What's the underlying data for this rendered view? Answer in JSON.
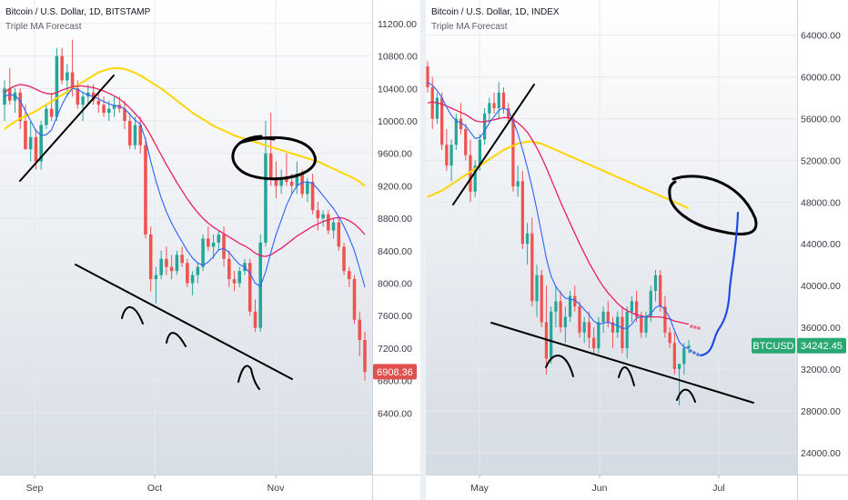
{
  "colors": {
    "up": "#26a69a",
    "down": "#ef5350",
    "ma_fast": "#2962ff",
    "ma_mid": "#e91e63",
    "ma_slow": "#ffd600",
    "ink": "#000000",
    "forecast": "#1e4ce6",
    "badge_red": "#e0504f",
    "badge_green": "#2aa872"
  },
  "chart_data": [
    {
      "type": "candlestick",
      "title": "Bitcoin / U.S. Dollar, 1D, BITSTAMP",
      "subtitle": "Triple MA Forecast",
      "x_labels": [
        "Sep",
        "Oct",
        "Nov"
      ],
      "y_ticks": [
        "11200.00",
        "10800.00",
        "10400.00",
        "10000.00",
        "9600.00",
        "9200.00",
        "8800.00",
        "8400.00",
        "8000.00",
        "7600.00",
        "7200.00",
        "6800.00",
        "6400.00"
      ],
      "ylim": [
        6000,
        11300
      ],
      "last_price": "6908.36",
      "candles": [
        [
          10200,
          10500,
          10000,
          10400
        ],
        [
          10400,
          10650,
          10200,
          10250
        ],
        [
          10250,
          10400,
          10100,
          10350
        ],
        [
          10350,
          10400,
          9900,
          10000
        ],
        [
          10000,
          10200,
          9700,
          9650
        ],
        [
          9650,
          10000,
          9500,
          9800
        ],
        [
          9800,
          9900,
          9400,
          9500
        ],
        [
          9500,
          10000,
          9400,
          9950
        ],
        [
          9950,
          10200,
          9900,
          10150
        ],
        [
          10150,
          10350,
          10000,
          10050
        ],
        [
          10050,
          10900,
          10000,
          10800
        ],
        [
          10800,
          10900,
          10450,
          10500
        ],
        [
          10500,
          10700,
          10300,
          10600
        ],
        [
          10600,
          11000,
          10300,
          10400
        ],
        [
          10400,
          10500,
          10150,
          10200
        ],
        [
          10200,
          10350,
          10000,
          10300
        ],
        [
          10300,
          10450,
          10200,
          10350
        ],
        [
          10350,
          10450,
          10200,
          10250
        ],
        [
          10250,
          10350,
          10100,
          10200
        ],
        [
          10200,
          10300,
          10050,
          10100
        ],
        [
          10100,
          10250,
          10000,
          10150
        ],
        [
          10150,
          10300,
          10050,
          10200
        ],
        [
          10200,
          10300,
          10100,
          10150
        ],
        [
          10150,
          10250,
          9900,
          10000
        ],
        [
          10000,
          10100,
          9650,
          9700
        ],
        [
          9700,
          10050,
          9650,
          9950
        ],
        [
          9950,
          10050,
          9600,
          9700
        ],
        [
          9700,
          9800,
          8550,
          8600
        ],
        [
          8600,
          8700,
          7900,
          8050
        ],
        [
          8050,
          8200,
          7750,
          8100
        ],
        [
          8100,
          8400,
          8050,
          8300
        ],
        [
          8300,
          8450,
          8100,
          8200
        ],
        [
          8200,
          8350,
          8050,
          8150
        ],
        [
          8150,
          8400,
          8100,
          8350
        ],
        [
          8350,
          8450,
          8200,
          8250
        ],
        [
          8250,
          8300,
          7950,
          8000
        ],
        [
          8000,
          8150,
          7850,
          8100
        ],
        [
          8100,
          8250,
          8000,
          8200
        ],
        [
          8200,
          8600,
          8150,
          8550
        ],
        [
          8550,
          8700,
          8400,
          8450
        ],
        [
          8450,
          8600,
          8300,
          8500
        ],
        [
          8500,
          8650,
          8400,
          8600
        ],
        [
          8600,
          8700,
          8200,
          8300
        ],
        [
          8300,
          8400,
          7950,
          8050
        ],
        [
          8050,
          8150,
          7900,
          8000
        ],
        [
          8000,
          8200,
          7950,
          8150
        ],
        [
          8150,
          8300,
          8100,
          8250
        ],
        [
          8250,
          8300,
          7600,
          7650
        ],
        [
          7650,
          7800,
          7400,
          7450
        ],
        [
          7450,
          8600,
          7400,
          8500
        ],
        [
          8500,
          10000,
          8450,
          9600
        ],
        [
          9600,
          10100,
          9200,
          9300
        ],
        [
          9300,
          9500,
          9050,
          9200
        ],
        [
          9200,
          9400,
          9100,
          9300
        ],
        [
          9300,
          9600,
          9200,
          9250
        ],
        [
          9250,
          9350,
          9100,
          9200
        ],
        [
          9200,
          9500,
          9100,
          9350
        ],
        [
          9350,
          9400,
          9050,
          9100
        ],
        [
          9100,
          9300,
          9000,
          9250
        ],
        [
          9250,
          9350,
          8850,
          8900
        ],
        [
          8900,
          9000,
          8650,
          8800
        ],
        [
          8800,
          8900,
          8700,
          8850
        ],
        [
          8850,
          8900,
          8600,
          8650
        ],
        [
          8650,
          8800,
          8550,
          8750
        ],
        [
          8750,
          8800,
          8400,
          8450
        ],
        [
          8450,
          8500,
          8100,
          8150
        ],
        [
          8150,
          8200,
          7950,
          8050
        ],
        [
          8050,
          8100,
          7500,
          7550
        ],
        [
          7550,
          7650,
          7100,
          7300
        ],
        [
          7300,
          7400,
          6800,
          6908
        ]
      ],
      "ma_fast": [
        10300,
        10330,
        10310,
        10250,
        10120,
        10000,
        9880,
        9820,
        9830,
        9890,
        10050,
        10200,
        10320,
        10400,
        10390,
        10350,
        10320,
        10300,
        10270,
        10240,
        10210,
        10190,
        10180,
        10150,
        10080,
        10010,
        9960,
        9770,
        9500,
        9260,
        9050,
        8880,
        8740,
        8620,
        8510,
        8400,
        8310,
        8250,
        8220,
        8260,
        8330,
        8410,
        8430,
        8380,
        8300,
        8230,
        8200,
        8120,
        8000,
        7960,
        8140,
        8380,
        8600,
        8780,
        8960,
        9100,
        9200,
        9240,
        9250,
        9230,
        9160,
        9080,
        9000,
        8920,
        8820,
        8700,
        8560,
        8400,
        8180,
        7950
      ],
      "ma_mid": [
        10350,
        10400,
        10430,
        10450,
        10440,
        10420,
        10390,
        10360,
        10340,
        10330,
        10350,
        10380,
        10400,
        10420,
        10430,
        10430,
        10420,
        10410,
        10390,
        10370,
        10340,
        10310,
        10270,
        10220,
        10160,
        10090,
        10020,
        9930,
        9820,
        9700,
        9580,
        9460,
        9350,
        9240,
        9140,
        9040,
        8950,
        8870,
        8800,
        8740,
        8690,
        8650,
        8610,
        8570,
        8530,
        8490,
        8460,
        8420,
        8370,
        8340,
        8330,
        8350,
        8390,
        8430,
        8480,
        8530,
        8580,
        8620,
        8660,
        8700,
        8730,
        8760,
        8780,
        8800,
        8810,
        8800,
        8770,
        8730,
        8670,
        8600
      ],
      "ma_slow": [
        9900,
        9950,
        9990,
        10030,
        10060,
        10090,
        10120,
        10160,
        10200,
        10240,
        10280,
        10320,
        10360,
        10400,
        10440,
        10480,
        10520,
        10560,
        10600,
        10620,
        10640,
        10650,
        10650,
        10640,
        10620,
        10590,
        10560,
        10520,
        10480,
        10440,
        10400,
        10350,
        10300,
        10250,
        10200,
        10150,
        10100,
        10060,
        10020,
        9980,
        9940,
        9910,
        9880,
        9850,
        9820,
        9800,
        9780,
        9760,
        9740,
        9720,
        9700,
        9680,
        9660,
        9640,
        9620,
        9600,
        9580,
        9560,
        9540,
        9520,
        9500,
        9470,
        9440,
        9410,
        9380,
        9350,
        9320,
        9290,
        9250,
        9200
      ]
    },
    {
      "type": "candlestick",
      "title": "Bitcoin / U.S. Dollar, 1D, INDEX",
      "subtitle": "Triple MA Forecast",
      "x_labels": [
        "May",
        "Jun",
        "Jul"
      ],
      "y_ticks": [
        "64000.00",
        "60000.00",
        "56000.00",
        "52000.00",
        "48000.00",
        "44000.00",
        "40000.00",
        "36000.00",
        "32000.00",
        "28000.00",
        "24000.00"
      ],
      "ylim": [
        22500,
        66500
      ],
      "last_price": "34242.45",
      "symbol": "BTCUSD",
      "candles": [
        [
          61000,
          61500,
          58500,
          59000
        ],
        [
          59000,
          60000,
          55000,
          56000
        ],
        [
          56000,
          58500,
          55500,
          58000
        ],
        [
          58000,
          58500,
          53000,
          53500
        ],
        [
          53500,
          55000,
          51000,
          51500
        ],
        [
          51500,
          54000,
          50000,
          53500
        ],
        [
          53500,
          56500,
          53000,
          56000
        ],
        [
          56000,
          57500,
          54500,
          55000
        ],
        [
          55000,
          55500,
          52000,
          52500
        ],
        [
          52500,
          54000,
          48000,
          49000
        ],
        [
          49000,
          52000,
          48500,
          51500
        ],
        [
          51500,
          54500,
          51000,
          54000
        ],
        [
          54000,
          57000,
          53500,
          56500
        ],
        [
          56500,
          58000,
          55500,
          57500
        ],
        [
          57500,
          58500,
          56500,
          57000
        ],
        [
          57000,
          59500,
          56000,
          58500
        ],
        [
          58500,
          59000,
          56500,
          57000
        ],
        [
          57000,
          57500,
          55500,
          56000
        ],
        [
          56000,
          56500,
          49000,
          49500
        ],
        [
          49500,
          51500,
          48500,
          50000
        ],
        [
          50000,
          51000,
          43500,
          44000
        ],
        [
          44000,
          46000,
          42000,
          45000
        ],
        [
          45000,
          46500,
          38000,
          38500
        ],
        [
          38500,
          42000,
          37000,
          41000
        ],
        [
          41000,
          41500,
          36000,
          36500
        ],
        [
          36500,
          40000,
          31500,
          33000
        ],
        [
          33000,
          38000,
          32500,
          37500
        ],
        [
          37500,
          40000,
          36000,
          38500
        ],
        [
          38500,
          39500,
          35500,
          36000
        ],
        [
          36000,
          38000,
          34500,
          37000
        ],
        [
          37000,
          39500,
          36500,
          39000
        ],
        [
          39000,
          40000,
          37500,
          38000
        ],
        [
          38000,
          38500,
          35000,
          35500
        ],
        [
          35500,
          37000,
          34500,
          36500
        ],
        [
          36500,
          37500,
          34000,
          35000
        ],
        [
          35000,
          36000,
          33500,
          34000
        ],
        [
          34000,
          37000,
          33500,
          36500
        ],
        [
          36500,
          38000,
          35500,
          37500
        ],
        [
          37500,
          38500,
          36000,
          36500
        ],
        [
          36500,
          37000,
          34000,
          35500
        ],
        [
          35500,
          37500,
          35000,
          37000
        ],
        [
          37000,
          38000,
          33500,
          34000
        ],
        [
          34000,
          38000,
          33000,
          37500
        ],
        [
          37500,
          39000,
          36500,
          38500
        ],
        [
          38500,
          39500,
          36500,
          37000
        ],
        [
          37000,
          37500,
          35000,
          35500
        ],
        [
          35500,
          37500,
          35000,
          37000
        ],
        [
          37000,
          40000,
          36500,
          39500
        ],
        [
          39500,
          41500,
          38500,
          41000
        ],
        [
          41000,
          41500,
          37500,
          38000
        ],
        [
          38000,
          39000,
          35000,
          35500
        ],
        [
          35500,
          36000,
          34000,
          34500
        ],
        [
          34500,
          35500,
          31500,
          32000
        ],
        [
          32000,
          32500,
          28500,
          32500
        ],
        [
          32500,
          34500,
          31500,
          34000
        ],
        [
          34000,
          34800,
          33500,
          34242
        ]
      ],
      "ma_fast": [
        59500,
        59200,
        58700,
        58000,
        57100,
        56300,
        55800,
        55600,
        55300,
        54700,
        54100,
        54200,
        54800,
        55600,
        56200,
        56800,
        57000,
        56800,
        55800,
        54600,
        53000,
        51300,
        49400,
        47300,
        45000,
        42600,
        40900,
        39900,
        39300,
        38800,
        38700,
        38600,
        38200,
        37700,
        37200,
        36600,
        36300,
        36400,
        36500,
        36300,
        36200,
        35900,
        35900,
        36300,
        36900,
        37000,
        37000,
        37300,
        37900,
        38100,
        37700,
        36900,
        35700,
        34600,
        34100,
        34000
      ],
      "ma_mid": [
        57500,
        57600,
        57500,
        57400,
        57200,
        57000,
        56800,
        56600,
        56400,
        56100,
        55800,
        55700,
        55700,
        55800,
        55900,
        56000,
        56100,
        56100,
        55900,
        55600,
        55200,
        54700,
        54000,
        53200,
        52300,
        51300,
        50200,
        49100,
        48000,
        47000,
        46000,
        45000,
        44000,
        43100,
        42200,
        41400,
        40600,
        39900,
        39300,
        38800,
        38300,
        37900,
        37600,
        37400,
        37200,
        37100,
        37000,
        37000,
        37000,
        37000,
        36900,
        36800,
        36600,
        36500,
        36400,
        36300
      ],
      "ma_slow": [
        48500,
        48700,
        48900,
        49100,
        49400,
        49700,
        50000,
        50300,
        50600,
        50900,
        51200,
        51500,
        51800,
        52100,
        52400,
        52700,
        53000,
        53200,
        53400,
        53600,
        53700,
        53800,
        53800,
        53700,
        53600,
        53400,
        53200,
        53000,
        52800,
        52600,
        52400,
        52200,
        52000,
        51800,
        51600,
        51400,
        51200,
        51000,
        50800,
        50600,
        50400,
        50200,
        50000,
        49800,
        49600,
        49400,
        49200,
        49000,
        48800,
        48600,
        48400,
        48200,
        48000,
        47800,
        47600,
        47400
      ]
    }
  ]
}
